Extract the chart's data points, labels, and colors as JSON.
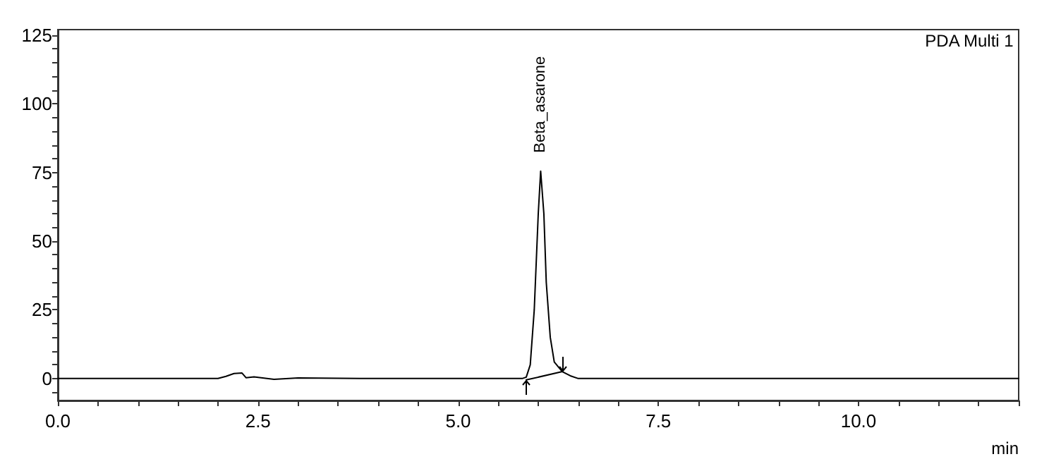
{
  "chart_data": {
    "type": "line",
    "xlabel": "min",
    "annotations": [
      "PDA Multi 1",
      {
        "text": "Beta_asarone",
        "x": 6.03,
        "y": 75.5
      }
    ],
    "series": [
      {
        "color": "#000000",
        "x": [
          0,
          1,
          2,
          2.1,
          2.2,
          2.3,
          2.35,
          2.45,
          2.7,
          3,
          4,
          5,
          5.8,
          5.85,
          5.9,
          5.95,
          6,
          6.03,
          6.07,
          6.1,
          6.15,
          6.2,
          6.3,
          6.4,
          6.5,
          8,
          10,
          12
        ],
        "values": [
          0,
          0,
          0,
          0.8,
          1.8,
          2,
          0.3,
          0.6,
          -0.3,
          0.2,
          0,
          0,
          0,
          0.5,
          5,
          25,
          60,
          75.5,
          60,
          35,
          15,
          6,
          2.5,
          1,
          0,
          0,
          0,
          0
        ]
      },
      {
        "color": "#000000",
        "x": [
          5.85,
          6.3
        ],
        "values": [
          -0.5,
          2.5
        ]
      }
    ],
    "xlim": [
      0,
      12
    ],
    "ylim": [
      -8,
      127
    ],
    "xticks": [
      {
        "value": 0,
        "label": "0.0"
      },
      {
        "value": 0.5,
        "label": null
      },
      {
        "value": 1,
        "label": null
      },
      {
        "value": 1.5,
        "label": null
      },
      {
        "value": 2,
        "label": null
      },
      {
        "value": 2.5,
        "label": "2.5"
      },
      {
        "value": 3,
        "label": null
      },
      {
        "value": 3.5,
        "label": null
      },
      {
        "value": 4,
        "label": null
      },
      {
        "value": 4.5,
        "label": null
      },
      {
        "value": 5,
        "label": "5.0"
      },
      {
        "value": 5.5,
        "label": null
      },
      {
        "value": 6,
        "label": null
      },
      {
        "value": 6.5,
        "label": null
      },
      {
        "value": 7,
        "label": null
      },
      {
        "value": 7.5,
        "label": "7.5"
      },
      {
        "value": 8,
        "label": null
      },
      {
        "value": 8.5,
        "label": null
      },
      {
        "value": 9,
        "label": null
      },
      {
        "value": 9.5,
        "label": null
      },
      {
        "value": 10,
        "label": "10.0"
      },
      {
        "value": 10.5,
        "label": null
      },
      {
        "value": 11,
        "label": null
      },
      {
        "value": 11.5,
        "label": null
      },
      {
        "value": 12,
        "label": null
      }
    ],
    "yticks": [
      {
        "value": -5,
        "label": null
      },
      0,
      {
        "value": 5,
        "label": null
      },
      {
        "value": 10,
        "label": null
      },
      {
        "value": 15,
        "label": null
      },
      {
        "value": 20,
        "label": null
      },
      25,
      {
        "value": 30,
        "label": null
      },
      {
        "value": 35,
        "label": null
      },
      {
        "value": 40,
        "label": null
      },
      {
        "value": 45,
        "label": null
      },
      50,
      {
        "value": 55,
        "label": null
      },
      {
        "value": 60,
        "label": null
      },
      {
        "value": 65,
        "label": null
      },
      {
        "value": 70,
        "label": null
      },
      75,
      {
        "value": 80,
        "label": null
      },
      {
        "value": 85,
        "label": null
      },
      {
        "value": 90,
        "label": null
      },
      {
        "value": 95,
        "label": null
      },
      100,
      {
        "value": 105,
        "label": null
      },
      {
        "value": 110,
        "label": null
      },
      {
        "value": 115,
        "label": null
      },
      {
        "value": 120,
        "label": null
      },
      125
    ],
    "grid": false,
    "marker": "none",
    "line_style": "solid"
  }
}
